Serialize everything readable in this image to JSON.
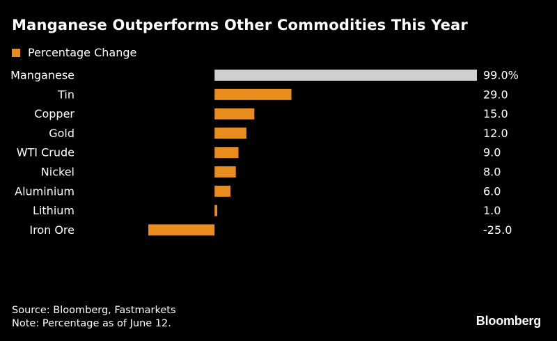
{
  "title": "Manganese Outperforms Other Commodities This Year",
  "colors": {
    "background": "#000000",
    "bar": "#e88c1e",
    "highlight_bar": "#cfcfcf",
    "text": "#ffffff"
  },
  "footer": {
    "source": "Source: Bloomberg, Fastmarkets",
    "note": "Note: Percentage as of June 12."
  },
  "brand": "Bloomberg",
  "chart_data": {
    "type": "bar",
    "orientation": "horizontal",
    "title": "Manganese Outperforms Other Commodities This Year",
    "categories": [
      "Manganese",
      "Tin",
      "Copper",
      "Gold",
      "WTI Crude",
      "Nickel",
      "Aluminium",
      "Lithium",
      "Iron Ore"
    ],
    "series": [
      {
        "name": "Percentage Change",
        "values": [
          99.0,
          29.0,
          15.0,
          12.0,
          9.0,
          8.0,
          6.0,
          1.0,
          -25.0
        ],
        "value_labels": [
          "99.0%",
          "29.0",
          "15.0",
          "12.0",
          "9.0",
          "8.0",
          "6.0",
          "1.0",
          "-25.0"
        ]
      }
    ],
    "highlighted_category": "Manganese",
    "xlim": [
      -25,
      99
    ],
    "legend": "top-left",
    "grid": false
  }
}
